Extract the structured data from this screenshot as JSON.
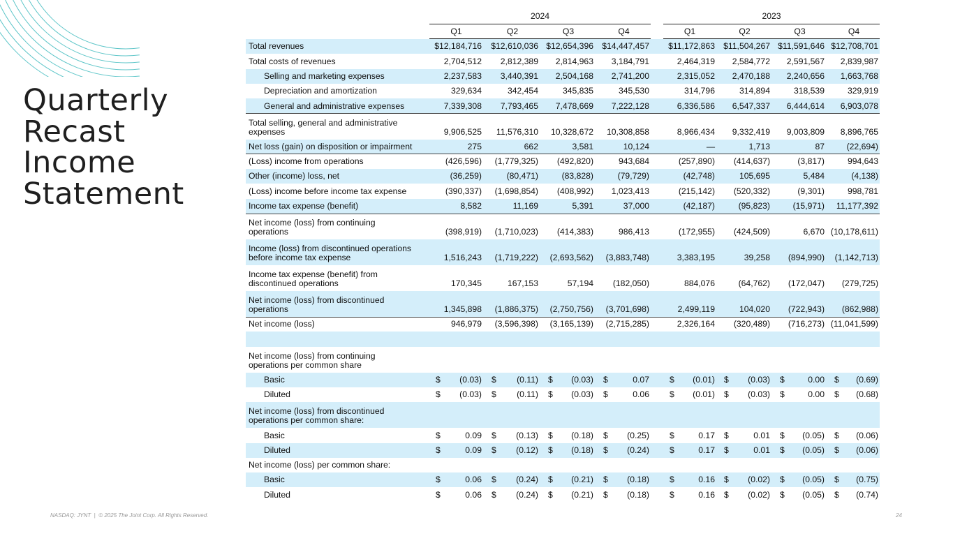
{
  "title": [
    "Quarterly",
    "Recast",
    "Income",
    "Statement"
  ],
  "table": {
    "years": [
      {
        "label": "2024",
        "quarters": [
          "Q1",
          "Q2",
          "Q3",
          "Q4"
        ]
      },
      {
        "label": "2023",
        "quarters": [
          "Q1",
          "Q2",
          "Q3",
          "Q4"
        ]
      }
    ],
    "currency_symbol": "$",
    "rows": [
      {
        "label": [
          "Total revenues"
        ],
        "values": [
          "$12,184,716",
          "$12,610,036",
          "$12,654,396",
          "$14,447,457",
          "$11,172,863",
          "$11,504,267",
          "$11,591,646",
          "$12,708,701"
        ]
      },
      {
        "label": [
          "Total costs of revenues"
        ],
        "values": [
          "2,704,512",
          "2,812,389",
          "2,814,963",
          "3,184,791",
          "2,464,319",
          "2,584,772",
          "2,591,567",
          "2,839,987"
        ]
      },
      {
        "label": [
          "Selling and marketing expenses"
        ],
        "indent": true,
        "values": [
          "2,237,583",
          "3,440,391",
          "2,504,168",
          "2,741,200",
          "2,315,052",
          "2,470,188",
          "2,240,656",
          "1,663,768"
        ]
      },
      {
        "label": [
          "Depreciation and amortization"
        ],
        "indent": true,
        "values": [
          "329,634",
          "342,454",
          "345,835",
          "345,530",
          "314,796",
          "314,894",
          "318,539",
          "329,919"
        ]
      },
      {
        "label": [
          "General and administrative expenses"
        ],
        "indent": true,
        "rule_below": true,
        "values": [
          "7,339,308",
          "7,793,465",
          "7,478,669",
          "7,222,128",
          "6,336,586",
          "6,547,337",
          "6,444,614",
          "6,903,078"
        ]
      },
      {
        "label": [
          "Total selling, general and administrative",
          "expenses"
        ],
        "values": [
          "9,906,525",
          "11,576,310",
          "10,328,672",
          "10,308,858",
          "8,966,434",
          "9,332,419",
          "9,003,809",
          "8,896,765"
        ]
      },
      {
        "label": [
          "Net loss (gain) on disposition or impairment"
        ],
        "rule_below": true,
        "values": [
          "275",
          "662",
          "3,581",
          "10,124",
          "—",
          "1,713",
          "87",
          "(22,694)"
        ]
      },
      {
        "label": [
          "(Loss) income from operations"
        ],
        "values": [
          "(426,596)",
          "(1,779,325)",
          "(492,820)",
          "943,684",
          "(257,890)",
          "(414,637)",
          "(3,817)",
          "994,643"
        ]
      },
      {
        "label": [
          "Other (income) loss, net"
        ],
        "values": [
          "(36,259)",
          "(80,471)",
          "(83,828)",
          "(79,729)",
          "(42,748)",
          "105,695",
          "5,484",
          "(4,138)"
        ]
      },
      {
        "label": [
          "(Loss) income before income tax expense"
        ],
        "values": [
          "(390,337)",
          "(1,698,854)",
          "(408,992)",
          "1,023,413",
          "(215,142)",
          "(520,332)",
          "(9,301)",
          "998,781"
        ]
      },
      {
        "label": [
          "Income tax expense (benefit)"
        ],
        "rule_below": true,
        "values": [
          "8,582",
          "11,169",
          "5,391",
          "37,000",
          "(42,187)",
          "(95,823)",
          "(15,971)",
          "11,177,392"
        ]
      },
      {
        "label": [
          "Net income (loss) from continuing",
          "operations"
        ],
        "values": [
          "(398,919)",
          "(1,710,023)",
          "(414,383)",
          "986,413",
          "(172,955)",
          "(424,509)",
          "6,670",
          "(10,178,611)"
        ]
      },
      {
        "label": [
          "Income (loss) from discontinued operations",
          "before income tax expense"
        ],
        "values": [
          "1,516,243",
          "(1,719,222)",
          "(2,693,562)",
          "(3,883,748)",
          "3,383,195",
          "39,258",
          "(894,990)",
          "(1,142,713)"
        ]
      },
      {
        "label": [
          "Income tax expense (benefit) from",
          "discontinued operations"
        ],
        "values": [
          "170,345",
          "167,153",
          "57,194",
          "(182,050)",
          "884,076",
          "(64,762)",
          "(172,047)",
          "(279,725)"
        ]
      },
      {
        "label": [
          "Net income (loss) from discontinued",
          "operations"
        ],
        "rule_below": true,
        "values": [
          "1,345,898",
          "(1,886,375)",
          "(2,750,756)",
          "(3,701,698)",
          "2,499,119",
          "104,020",
          "(722,943)",
          "(862,988)"
        ]
      },
      {
        "label": [
          "Net income (loss)"
        ],
        "rule_below": true,
        "values": [
          "946,979",
          "(3,596,398)",
          "(3,165,139)",
          "(2,715,285)",
          "2,326,164",
          "(320,489)",
          "(716,273)",
          "(11,041,599)"
        ]
      },
      null,
      {
        "label": [
          "Net income (loss) from continuing",
          "operations per common share"
        ]
      },
      {
        "label": [
          "Basic"
        ],
        "indent": true,
        "currency": true,
        "values": [
          "(0.03)",
          "(0.11)",
          "(0.03)",
          "0.07",
          "(0.01)",
          "(0.03)",
          "0.00",
          "(0.69)"
        ]
      },
      {
        "label": [
          "Diluted"
        ],
        "indent": true,
        "currency": true,
        "values": [
          "(0.03)",
          "(0.11)",
          "(0.03)",
          "0.06",
          "(0.01)",
          "(0.03)",
          "0.00",
          "(0.68)"
        ]
      },
      {
        "label": [
          "Net income (loss) from discontinued",
          "operations per common share:"
        ]
      },
      {
        "label": [
          "Basic"
        ],
        "indent": true,
        "currency": true,
        "values": [
          "0.09",
          "(0.13)",
          "(0.18)",
          "(0.25)",
          "0.17",
          "0.01",
          "(0.05)",
          "(0.06)"
        ]
      },
      {
        "label": [
          "Diluted"
        ],
        "indent": true,
        "currency": true,
        "values": [
          "0.09",
          "(0.12)",
          "(0.18)",
          "(0.24)",
          "0.17",
          "0.01",
          "(0.05)",
          "(0.06)"
        ]
      },
      {
        "label": [
          "Net income (loss) per common share:"
        ]
      },
      {
        "label": [
          "Basic"
        ],
        "indent": true,
        "currency": true,
        "values": [
          "0.06",
          "(0.24)",
          "(0.21)",
          "(0.18)",
          "0.16",
          "(0.02)",
          "(0.05)",
          "(0.75)"
        ]
      },
      {
        "label": [
          "Diluted"
        ],
        "indent": true,
        "currency": true,
        "values": [
          "0.06",
          "(0.24)",
          "(0.21)",
          "(0.18)",
          "0.16",
          "(0.02)",
          "(0.05)",
          "(0.74)"
        ]
      }
    ]
  },
  "footer": {
    "text": "NASDAQ: JYNT  |  © 2025 The Joint Corp. All Rights Reserved.",
    "page": "24"
  }
}
